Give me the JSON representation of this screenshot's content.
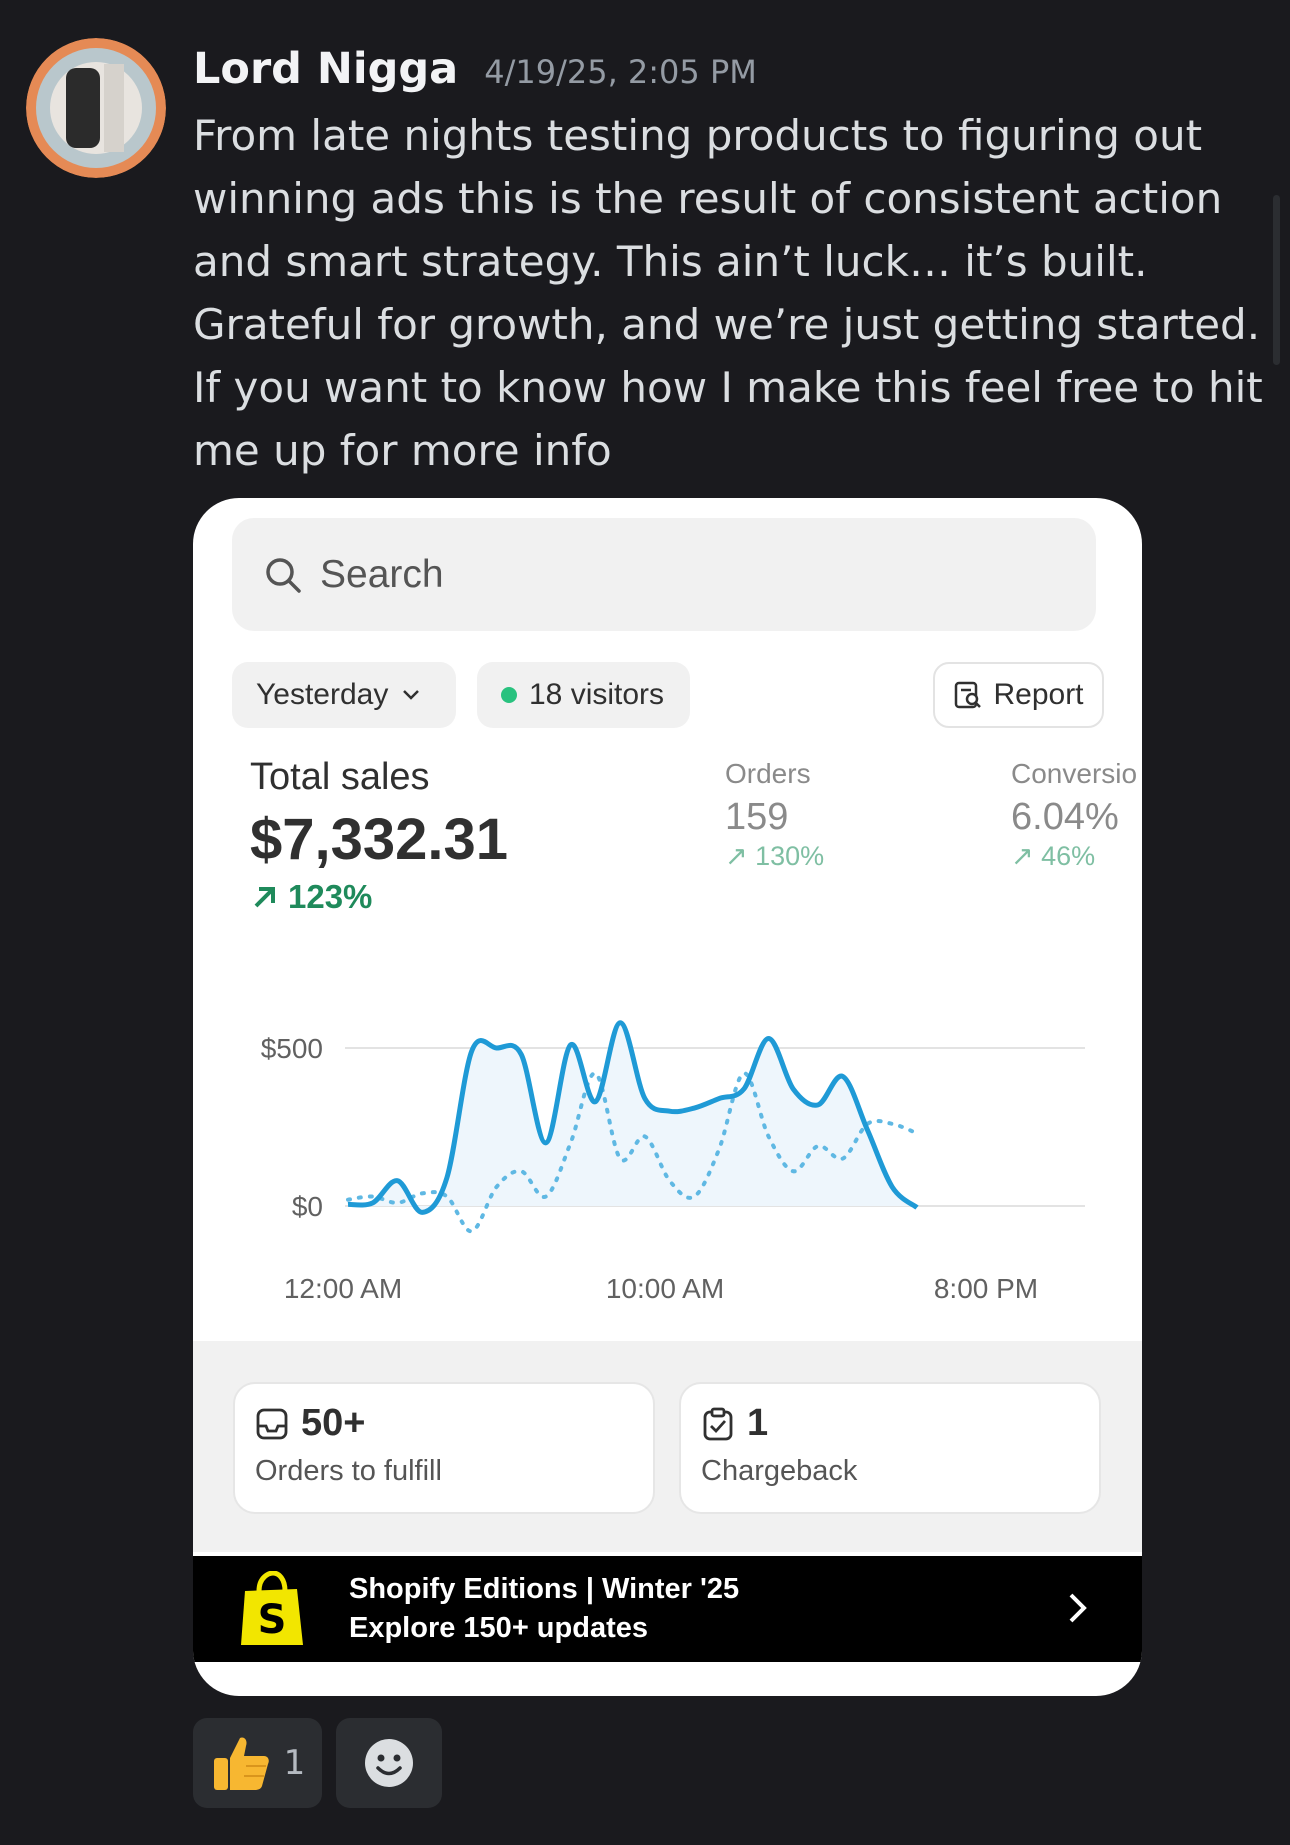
{
  "message": {
    "username": "Lord Nigga",
    "timestamp": "4/19/25, 2:05 PM",
    "text": "From late nights testing products to figuring out winning ads this is the result of consistent action and smart strategy. This ain’t luck… it’s built. Grateful for growth, and we’re just getting started. If you want to know how I make this feel free to hit me up for more info"
  },
  "embed": {
    "search": {
      "placeholder": "Search"
    },
    "date_filter": "Yesterday",
    "visitors": "18 visitors",
    "report_label": "Report",
    "total_sales": {
      "label": "Total sales",
      "value": "$7,332.31",
      "change": "123%"
    },
    "orders": {
      "label": "Orders",
      "value": "159",
      "change": "130%"
    },
    "conversion": {
      "label": "Conversio",
      "value": "6.04%",
      "change": "46%"
    },
    "cards": [
      {
        "value": "50+",
        "label": "Orders to fulfill",
        "icon": "inbox-icon"
      },
      {
        "value": "1",
        "label": "Chargeback",
        "icon": "clipboard-check-icon"
      }
    ],
    "banner": {
      "line1": "Shopify Editions | Winter '25",
      "line2": "Explore 150+ updates"
    },
    "colors": {
      "current": "#1f9ad6",
      "previous": "#5fb8e3",
      "positive": "#1f8a5b"
    }
  },
  "chart_data": {
    "type": "line",
    "y_ticks": [
      "$500",
      "$0"
    ],
    "x_ticks": [
      "12:00 AM",
      "10:00 AM",
      "8:00 PM"
    ],
    "ylim": [
      0,
      700
    ],
    "x": [
      0,
      1,
      2,
      3,
      4,
      5,
      6,
      7,
      8,
      9,
      10,
      11,
      12,
      13,
      14,
      15,
      16,
      17,
      18,
      19,
      20,
      21,
      22,
      23
    ],
    "series": [
      {
        "values": [
          5,
          10,
          80,
          -20,
          90,
          490,
          500,
          480,
          200,
          510,
          330,
          580,
          340,
          300,
          310,
          340,
          370,
          530,
          370,
          320,
          410,
          240,
          60,
          -5
        ]
      },
      {
        "values": [
          20,
          30,
          10,
          40,
          30,
          -80,
          60,
          110,
          30,
          200,
          420,
          150,
          220,
          80,
          30,
          180,
          420,
          220,
          110,
          190,
          150,
          260,
          260,
          230
        ]
      }
    ]
  },
  "reactions": [
    {
      "emoji": "thumbs-up-icon",
      "count": "1"
    },
    {
      "emoji": "add-reaction-icon"
    }
  ]
}
